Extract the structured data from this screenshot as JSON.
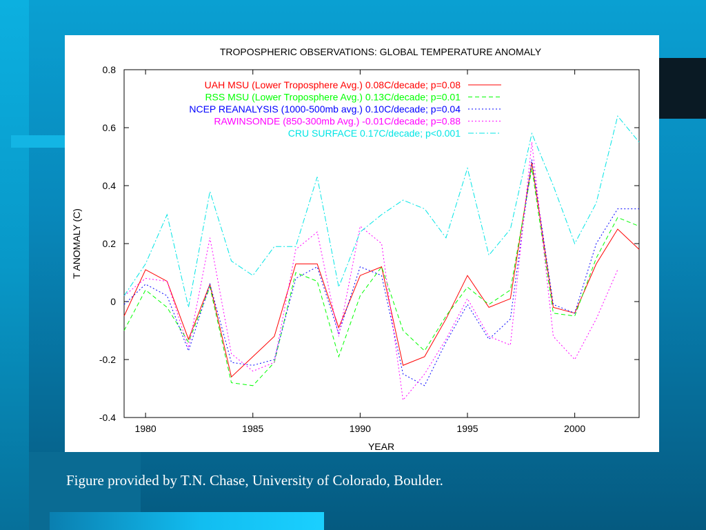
{
  "caption": "Figure provided by T.N. Chase, University of Colorado, Boulder.",
  "chart_data": {
    "type": "line",
    "title": "TROPOSPHERIC OBSERVATIONS: GLOBAL TEMPERATURE ANOMALY",
    "xlabel": "YEAR",
    "ylabel": "T ANOMALY (C)",
    "xlim": [
      1979,
      2003
    ],
    "ylim": [
      -0.4,
      0.8
    ],
    "xticks": [
      1980,
      1985,
      1990,
      1995,
      2000
    ],
    "xtick_labels": [
      "1980",
      "1985",
      "1990",
      "1995",
      "2000"
    ],
    "yticks": [
      -0.4,
      -0.2,
      0,
      0.2,
      0.4,
      0.6,
      0.8
    ],
    "ytick_labels": [
      "-0.4",
      "-0.2",
      "0",
      "0.2",
      "0.4",
      "0.6",
      "0.8"
    ],
    "legend_position": "top-right",
    "grid": false,
    "series": [
      {
        "name": "UAH MSU (Lower Troposphere Avg.) 0.08C/decade; p=0.08",
        "color": "#ff0000",
        "dash": "solid",
        "x": [
          1979,
          1980,
          1981,
          1982,
          1983,
          1984,
          1985,
          1986,
          1987,
          1988,
          1989,
          1990,
          1991,
          1992,
          1993,
          1994,
          1995,
          1996,
          1997,
          1998,
          1999,
          2000,
          2001,
          2002,
          2003
        ],
        "y": [
          -0.05,
          0.11,
          0.07,
          -0.13,
          0.06,
          -0.26,
          -0.19,
          -0.12,
          0.13,
          0.13,
          -0.09,
          0.09,
          0.12,
          -0.22,
          -0.19,
          -0.06,
          0.09,
          -0.02,
          0.01,
          0.48,
          -0.02,
          -0.04,
          0.13,
          0.25,
          0.18
        ]
      },
      {
        "name": "RSS MSU (Lower Troposphere Avg.) 0.13C/decade; p=0.01",
        "color": "#00ff00",
        "dash": "dashed",
        "x": [
          1979,
          1980,
          1981,
          1982,
          1983,
          1984,
          1985,
          1986,
          1987,
          1988,
          1989,
          1990,
          1991,
          1992,
          1993,
          1994,
          1995,
          1996,
          1997,
          1998,
          1999,
          2000,
          2001,
          2002,
          2003
        ],
        "y": [
          -0.1,
          0.04,
          -0.02,
          -0.14,
          0.05,
          -0.28,
          -0.29,
          -0.21,
          0.1,
          0.07,
          -0.19,
          0.02,
          0.12,
          -0.1,
          -0.17,
          -0.05,
          0.05,
          -0.01,
          0.04,
          0.46,
          -0.04,
          -0.05,
          0.15,
          0.29,
          0.26
        ]
      },
      {
        "name": "NCEP REANALYSIS (1000-500mb avg.) 0.10C/decade; p=0.04",
        "color": "#0000ff",
        "dash": "dotted",
        "x": [
          1979,
          1980,
          1981,
          1982,
          1983,
          1984,
          1985,
          1986,
          1987,
          1988,
          1989,
          1990,
          1991,
          1992,
          1993,
          1994,
          1995,
          1996,
          1997,
          1998,
          1999,
          2000,
          2001,
          2002,
          2003
        ],
        "y": [
          -0.01,
          0.06,
          0.02,
          -0.17,
          0.06,
          -0.21,
          -0.22,
          -0.2,
          0.08,
          0.12,
          -0.11,
          0.12,
          0.09,
          -0.25,
          -0.29,
          -0.14,
          -0.01,
          -0.13,
          -0.06,
          0.49,
          -0.01,
          -0.04,
          0.2,
          0.32,
          0.32
        ]
      },
      {
        "name": "RAWINSONDE (850-300mb Avg.) -0.01C/decade; p=0.88",
        "color": "#ff00ff",
        "dash": "dotted",
        "x": [
          1979,
          1980,
          1981,
          1982,
          1983,
          1984,
          1985,
          1986,
          1987,
          1988,
          1989,
          1990,
          1991,
          1992,
          1993,
          1994,
          1995,
          1996,
          1997,
          1998,
          1999,
          2000,
          2001,
          2002
        ],
        "y": [
          0.02,
          0.08,
          0.07,
          -0.16,
          0.22,
          -0.18,
          -0.24,
          -0.21,
          0.18,
          0.24,
          -0.12,
          0.26,
          0.2,
          -0.34,
          -0.25,
          -0.13,
          0.01,
          -0.12,
          -0.15,
          0.55,
          -0.12,
          -0.2,
          -0.06,
          0.11
        ]
      },
      {
        "name": "CRU SURFACE 0.17C/decade; p<0.001",
        "color": "#00e5e5",
        "dash": "dashdot",
        "x": [
          1979,
          1980,
          1981,
          1982,
          1983,
          1984,
          1985,
          1986,
          1987,
          1988,
          1989,
          1990,
          1991,
          1992,
          1993,
          1994,
          1995,
          1996,
          1997,
          1998,
          1999,
          2000,
          2001,
          2002,
          2003
        ],
        "y": [
          0.02,
          0.13,
          0.3,
          -0.02,
          0.38,
          0.14,
          0.09,
          0.19,
          0.19,
          0.43,
          0.05,
          0.24,
          0.3,
          0.35,
          0.32,
          0.22,
          0.46,
          0.16,
          0.25,
          0.58,
          0.4,
          0.2,
          0.34,
          0.64,
          0.55
        ]
      }
    ]
  }
}
